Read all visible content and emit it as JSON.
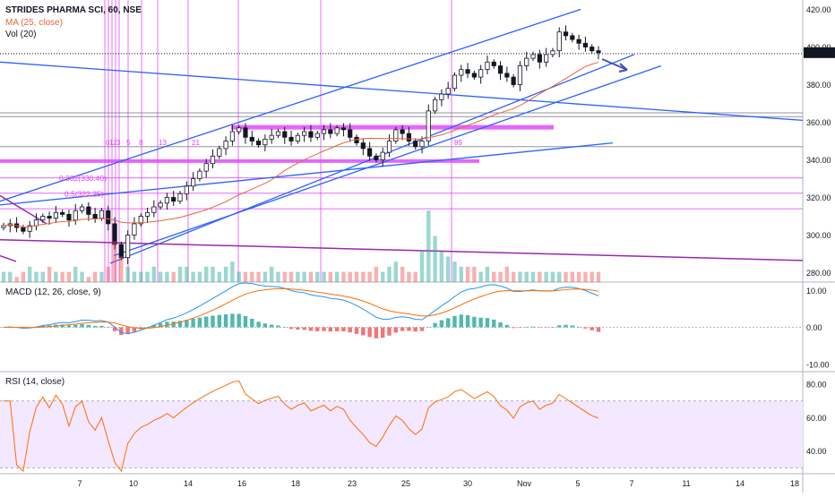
{
  "header": {
    "title": "STRIDES PHARMA SCI, 60, NSE",
    "ma_label": "MA (25, close)",
    "vol_label": "Vol (20)"
  },
  "macd_label": "MACD (12, 26, close, 9)",
  "rsi_label": "RSI (14, close)",
  "colors": {
    "up": "#131722",
    "down": "#131722",
    "ma": "#e8643c",
    "trendline": "#2962ff",
    "magenta": "#e040fb",
    "purple": "#9c27b0",
    "macd_line": "#2196f3",
    "signal_line": "#ff6d00",
    "hist_up": "#26a69a",
    "hist_down": "#ef5350",
    "rsi_line": "#ff6d00",
    "rsi_band": "#f3e8ff",
    "volume_up": "#26a69a",
    "volume_down": "#ef5350"
  },
  "chart_data": [
    {
      "type": "candlestick",
      "title": "STRIDES PHARMA SCI, 60, NSE",
      "x_tick_labels": [
        "7",
        "10",
        "14",
        "16",
        "18",
        "23",
        "25",
        "30",
        "Nov",
        "5",
        "7",
        "11",
        "14",
        "18"
      ],
      "y_tick_labels": [
        "420.00",
        "400.00",
        "380.00",
        "360.00",
        "340.00",
        "320.00",
        "300.00",
        "280.00"
      ],
      "ylim": [
        275,
        425
      ],
      "close_series": [
        305,
        306,
        304,
        302,
        305,
        308,
        310,
        309,
        312,
        311,
        308,
        313,
        315,
        311,
        309,
        313,
        306,
        295,
        288,
        300,
        306,
        310,
        312,
        315,
        317,
        320,
        318,
        322,
        326,
        330,
        334,
        338,
        342,
        346,
        350,
        355,
        357,
        352,
        350,
        348,
        351,
        353,
        355,
        352,
        350,
        353,
        355,
        352,
        354,
        356,
        354,
        357,
        356,
        352,
        349,
        346,
        342,
        340,
        344,
        350,
        356,
        354,
        350,
        347,
        350,
        366,
        372,
        375,
        378,
        385,
        388,
        386,
        384,
        388,
        392,
        390,
        386,
        384,
        380,
        390,
        394,
        396,
        392,
        396,
        398,
        408,
        406,
        404,
        402,
        400,
        398,
        397
      ],
      "ma_period": 25,
      "annotations": {
        "fib_labels": [
          "0.382(330.40)",
          "0.5(322.25)"
        ],
        "time_count_labels": [
          "0",
          "1",
          "2",
          "3",
          "5",
          "8",
          "13",
          "21",
          "89"
        ],
        "horizontal_levels": [
          330.4,
          322.25,
          314,
          347,
          363,
          365
        ]
      }
    },
    {
      "type": "bar",
      "title": "Vol (20)",
      "values": [
        2,
        2,
        1,
        2,
        3,
        2,
        2,
        3,
        2,
        2,
        2,
        3,
        2,
        1,
        2,
        2,
        3,
        8,
        5,
        3,
        2,
        2,
        2,
        3,
        2,
        2,
        2,
        3,
        3,
        2,
        2,
        3,
        3,
        2,
        3,
        4,
        2,
        2,
        2,
        2,
        2,
        3,
        2,
        2,
        2,
        2,
        2,
        2,
        2,
        2,
        2,
        2,
        2,
        2,
        2,
        2,
        2,
        3,
        2,
        3,
        4,
        3,
        2,
        2,
        6,
        14,
        9,
        6,
        5,
        4,
        3,
        3,
        3,
        2,
        3,
        2,
        2,
        3,
        2,
        2,
        2,
        2,
        2,
        2,
        2,
        2,
        2,
        2,
        2,
        2,
        2,
        2
      ]
    },
    {
      "type": "line",
      "title": "MACD (12, 26, close, 9)",
      "y_tick_labels": [
        "10.00",
        "0.00",
        "-10.00"
      ],
      "ylim": [
        -12,
        12
      ]
    },
    {
      "type": "line",
      "title": "RSI (14, close)",
      "y_tick_labels": [
        "80.00",
        "60.00",
        "40.00"
      ],
      "ylim": [
        27,
        87
      ],
      "band": [
        30,
        70
      ]
    }
  ]
}
